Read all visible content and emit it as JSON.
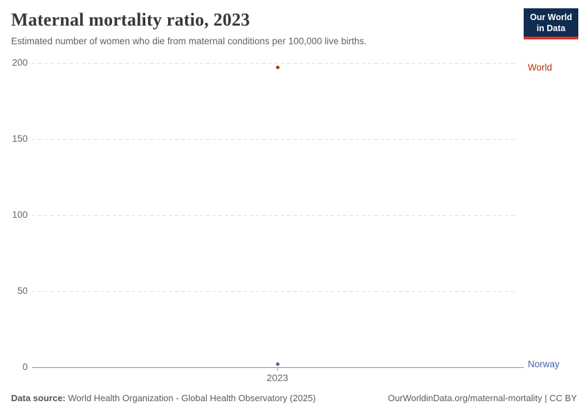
{
  "header": {
    "title": "Maternal mortality ratio, 2023",
    "subtitle": "Estimated number of women who die from maternal conditions per 100,000 live births.",
    "logo": {
      "line1": "Our World",
      "line2": "in Data"
    }
  },
  "chart_data": {
    "type": "scatter",
    "title": "Maternal mortality ratio, 2023",
    "x": [
      2023
    ],
    "xticks": [
      "2023"
    ],
    "series": [
      {
        "name": "World",
        "values": [
          197
        ],
        "color": "#b13507"
      },
      {
        "name": "Norway",
        "values": [
          2
        ],
        "color": "#4665a8"
      }
    ],
    "xlabel": "",
    "ylabel": "",
    "ylim": [
      0,
      200
    ],
    "yticks": [
      0,
      50,
      100,
      150,
      200
    ],
    "grid": true,
    "legend_position": "right-entity-labels"
  },
  "colors": {
    "grid": "#dddddd",
    "axis": "#8f8f8f",
    "tick_label": "#666666"
  },
  "footer": {
    "source_label": "Data source:",
    "source_text": " World Health Organization - Global Health Observatory (2025)",
    "credit": "OurWorldinData.org/maternal-mortality | CC BY"
  }
}
